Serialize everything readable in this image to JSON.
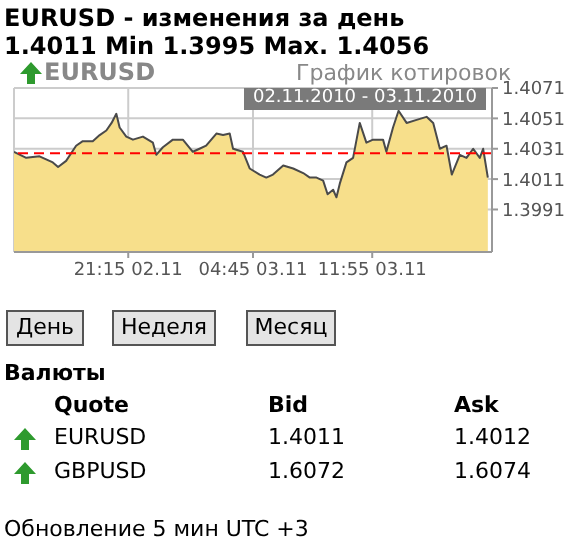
{
  "chart_data": {
    "type": "area",
    "title": "EURUSD - изменения за день",
    "subtitle": "1.4011 Min 1.3995 Max. 1.4056",
    "x": [
      "2010-11-02T14:23",
      "2010-11-02T15:07",
      "2010-11-02T15:55",
      "2010-11-02T16:43",
      "2010-11-02T17:02",
      "2010-11-02T17:31",
      "2010-11-02T18:07",
      "2010-11-02T18:31",
      "2010-11-02T19:07",
      "2010-11-02T19:32",
      "2010-11-02T19:56",
      "2010-11-02T20:15",
      "2010-11-02T20:32",
      "2010-11-02T20:44",
      "2010-11-02T21:08",
      "2010-11-02T21:32",
      "2010-11-02T22:08",
      "2010-11-02T22:44",
      "2010-11-02T22:56",
      "2010-11-02T23:20",
      "2010-11-02T23:56",
      "2010-11-03T00:32",
      "2010-11-03T01:08",
      "2010-11-03T01:32",
      "2010-11-03T01:56",
      "2010-11-03T02:33",
      "2010-11-03T02:57",
      "2010-11-03T03:21",
      "2010-11-03T03:33",
      "2010-11-03T04:09",
      "2010-11-03T04:33",
      "2010-11-03T05:09",
      "2010-11-03T05:33",
      "2010-11-03T05:57",
      "2010-11-03T06:34",
      "2010-11-03T07:10",
      "2010-11-03T07:46",
      "2010-11-03T08:10",
      "2010-11-03T08:34",
      "2010-11-03T08:58",
      "2010-11-03T09:14",
      "2010-11-03T09:34",
      "2010-11-03T09:46",
      "2010-11-03T09:58",
      "2010-11-03T10:22",
      "2010-11-03T10:46",
      "2010-11-03T11:10",
      "2010-11-03T11:34",
      "2010-11-03T11:58",
      "2010-11-03T12:34",
      "2010-11-03T12:46",
      "2010-11-03T13:10",
      "2010-11-03T13:30",
      "2010-11-03T13:59",
      "2010-11-03T14:35",
      "2010-11-03T15:11",
      "2010-11-03T15:35",
      "2010-11-03T15:59",
      "2010-11-03T16:23",
      "2010-11-03T16:42",
      "2010-11-03T17:11",
      "2010-11-03T17:35",
      "2010-11-03T17:59",
      "2010-11-03T18:23",
      "2010-11-03T18:35",
      "2010-11-03T18:52"
    ],
    "series": [
      {
        "color": "#f7df8b",
        "values": [
          1.4029,
          1.4025,
          1.4026,
          1.4022,
          1.4019,
          1.4023,
          1.4033,
          1.4036,
          1.4036,
          1.404,
          1.4043,
          1.4048,
          1.4054,
          1.4045,
          1.4039,
          1.4037,
          1.4039,
          1.4035,
          1.4027,
          1.4032,
          1.4037,
          1.4037,
          1.4029,
          1.4031,
          1.4033,
          1.4041,
          1.404,
          1.4041,
          1.4031,
          1.4029,
          1.4018,
          1.4014,
          1.4012,
          1.4014,
          1.402,
          1.4018,
          1.4015,
          1.4012,
          1.4012,
          1.401,
          1.4001,
          1.4004,
          1.3999,
          1.4008,
          1.4022,
          1.4025,
          1.4048,
          1.4035,
          1.4037,
          1.4037,
          1.4029,
          1.4045,
          1.4056,
          1.4048,
          1.405,
          1.4052,
          1.4048,
          1.4031,
          1.4033,
          1.4014,
          1.4027,
          1.4025,
          1.4031,
          1.4025,
          1.4031,
          1.4012
        ]
      }
    ],
    "xlim": [
      "2010-11-02T14:23",
      "2010-11-03T19:07"
    ],
    "xticks": [
      {
        "value": "2010-11-02T21:15",
        "label": "21:15 02.11"
      },
      {
        "value": "2010-11-03T04:45",
        "label": "04:45 03.11"
      },
      {
        "value": "2010-11-03T11:55",
        "label": "11:55 03.11"
      }
    ],
    "ylim": [
      1.3963,
      1.4071
    ],
    "yticks": [
      1.3991,
      1.4011,
      1.4031,
      1.4051,
      1.4071
    ],
    "grid": true,
    "ref_lines": [
      {
        "axis": "y",
        "value": 1.4028,
        "color": "#ff0000",
        "line_style": "dashed"
      }
    ],
    "annotations": [
      "EURUSD",
      "График котировок",
      "02.11.2010 - 03.11.2010",
      "День",
      "Неделя",
      "Месяц",
      "Валюты",
      "Quote",
      "Bid",
      "Ask",
      "EURUSD",
      "1.4011",
      "1.4012",
      "GBPUSD",
      "1.6072",
      "1.6074",
      "Обновление 5 мин UTC +3"
    ]
  }
}
